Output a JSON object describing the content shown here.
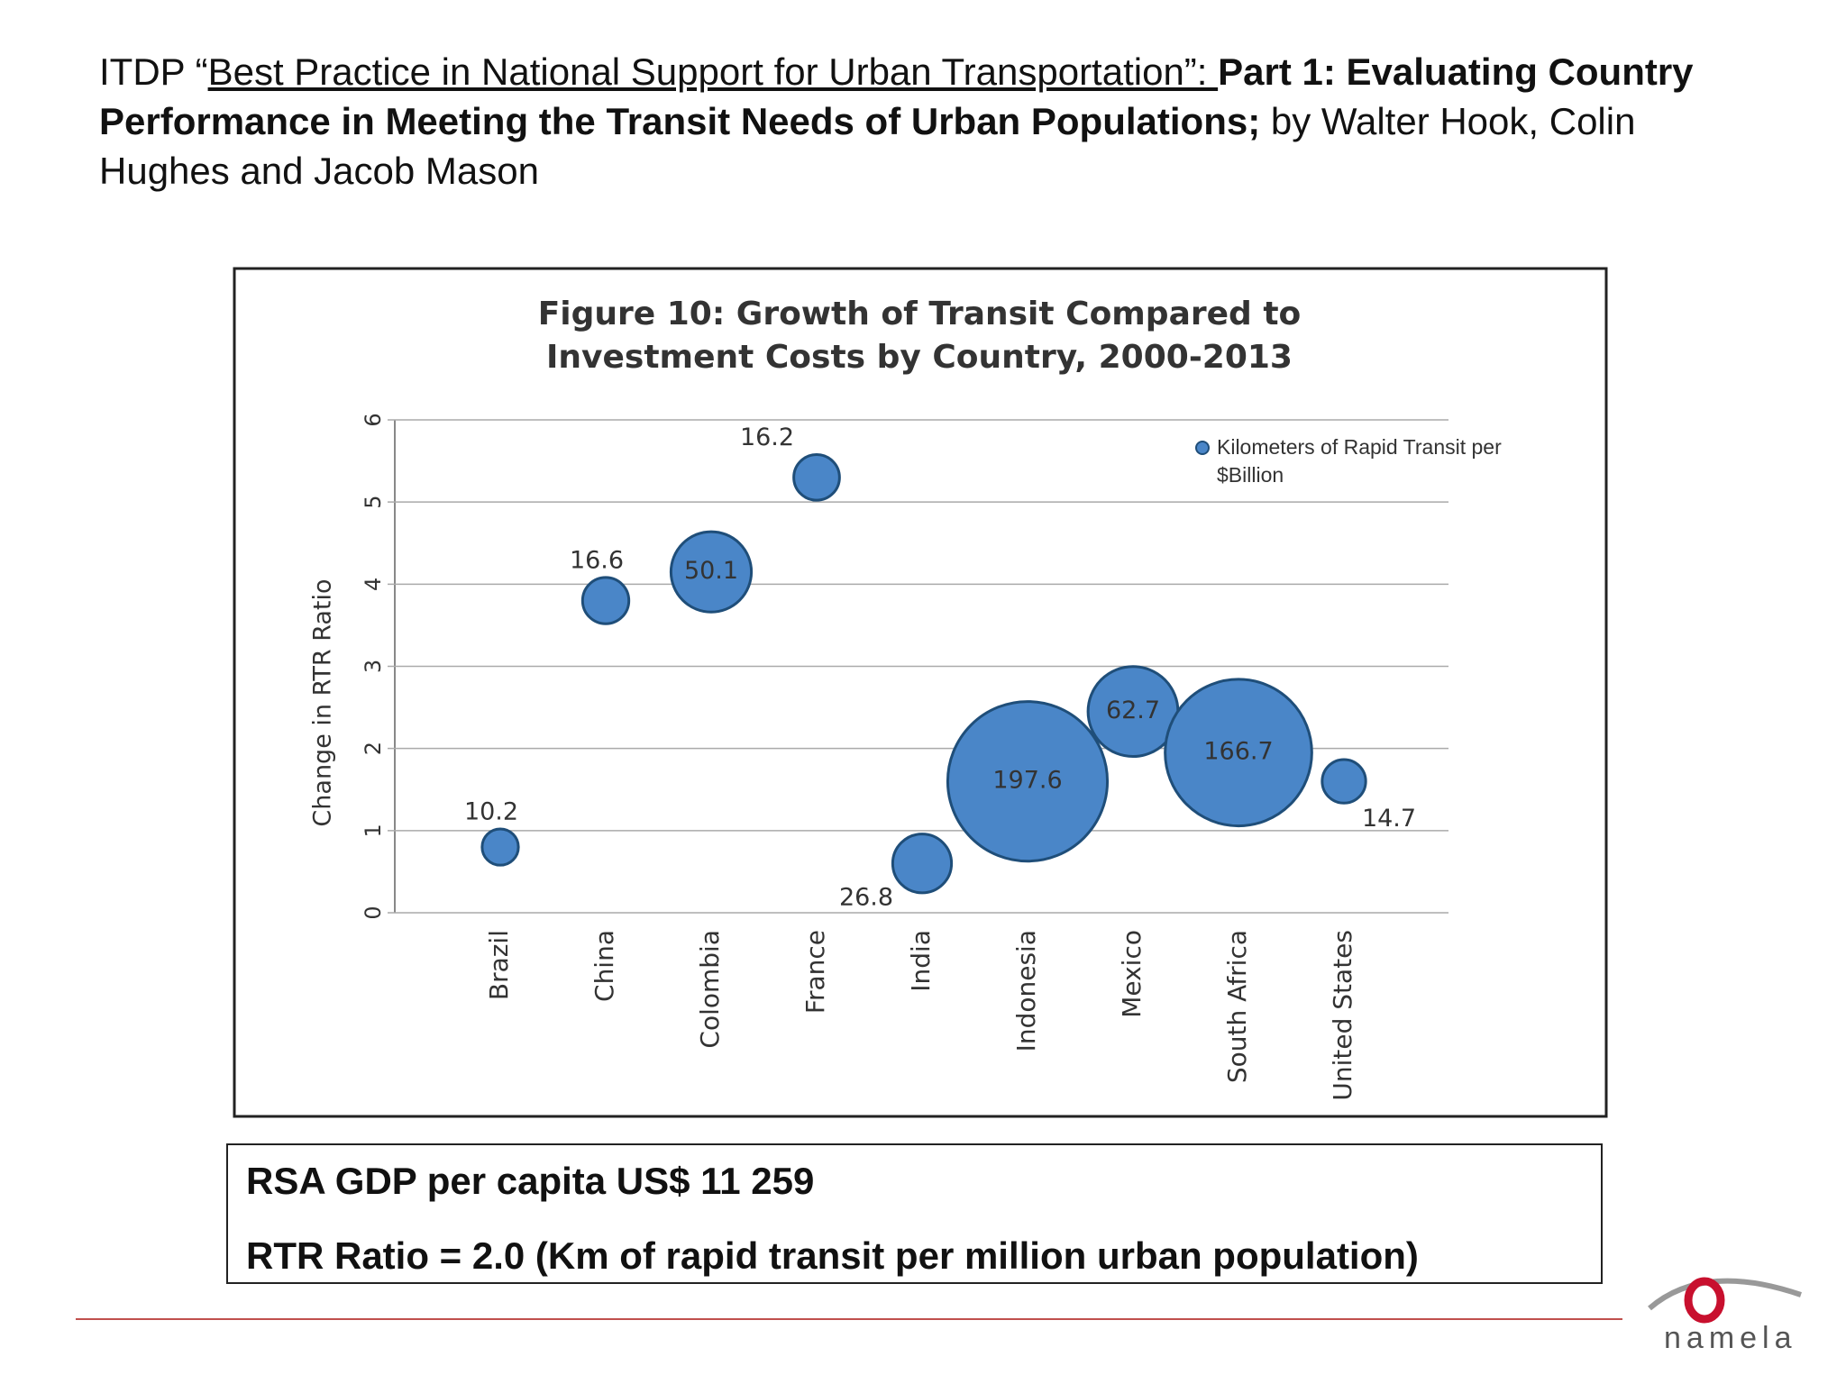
{
  "header": {
    "parts": [
      "ITDP “",
      "Best Practice in National Support for Urban Transportation”: ",
      "Part 1: Evaluating Country Performance in Meeting the Transit Needs of Urban Populations;",
      " by Walter Hook, Colin Hughes and Jacob Mason"
    ]
  },
  "chart_data": {
    "type": "bubble",
    "title": "Figure 10: Growth of Transit Compared to Investment Costs by Country, 2000-2013",
    "y_label": "Change in RTR Ratio",
    "categories": [
      "Brazil",
      "China",
      "Colombia",
      "France",
      "India",
      "Indonesia",
      "Mexico",
      "South Africa",
      "United States"
    ],
    "series": [
      {
        "name": "Kilometers of Rapid Transit per $Billion",
        "color": "#4a86c8",
        "values": [
          0.8,
          3.8,
          4.15,
          5.3,
          0.6,
          1.6,
          2.45,
          1.95,
          1.6
        ],
        "sizes": [
          10.2,
          16.6,
          50.1,
          16.2,
          26.8,
          197.6,
          62.7,
          166.7,
          14.7
        ]
      }
    ],
    "ylim": [
      0,
      6
    ],
    "yticks": [
      0,
      1,
      2,
      3,
      4,
      5,
      6
    ],
    "grid": true,
    "legend": "top-right"
  },
  "notes": [
    "RSA GDP per capita US$ 11 259",
    "RTR Ratio = 2.0 (Km of rapid transit per million urban population)"
  ],
  "logo": {
    "text": "namela"
  }
}
